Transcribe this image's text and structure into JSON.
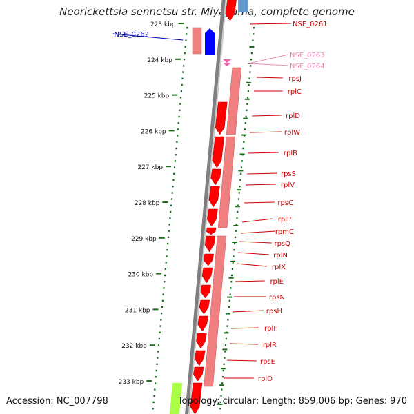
{
  "title": "Neorickettsia sennetsu str. Miyayama, complete genome",
  "footer": {
    "accession": "Accession: NC_007798",
    "topology": "Topology: circular; Length: 859,006 bp; Genes: 970"
  },
  "colors": {
    "tick": "#1a6e1a",
    "backbone": "#808080",
    "gene_fwd": "#ff0000",
    "gene_fwd_light": "#f08080",
    "gene_rev": "#0000ff",
    "gene_rev_light": "#6699cc",
    "rna": "#aaff44",
    "label_red": "#cc0000",
    "label_blue": "#0000aa",
    "label_pink": "#ee88bb"
  },
  "scale_labels": [
    "223 kbp",
    "224 kbp",
    "225 kbp",
    "226 kbp",
    "227 kbp",
    "228 kbp",
    "229 kbp",
    "230 kbp",
    "231 kbp",
    "232 kbp",
    "233 kbp"
  ],
  "genes": [
    {
      "name": "NSE_0261",
      "color": "red"
    },
    {
      "name": "NSE_0262",
      "color": "blue"
    },
    {
      "name": "NSE_0263",
      "color": "pink"
    },
    {
      "name": "NSE_0264",
      "color": "pink"
    },
    {
      "name": "rpsJ",
      "color": "red"
    },
    {
      "name": "rplC",
      "color": "red"
    },
    {
      "name": "rplD",
      "color": "red"
    },
    {
      "name": "rplW",
      "color": "red"
    },
    {
      "name": "rplB",
      "color": "red"
    },
    {
      "name": "rpsS",
      "color": "red"
    },
    {
      "name": "rplV",
      "color": "red"
    },
    {
      "name": "rpsC",
      "color": "red"
    },
    {
      "name": "rplP",
      "color": "red"
    },
    {
      "name": "rpmC",
      "color": "red"
    },
    {
      "name": "rpsQ",
      "color": "red"
    },
    {
      "name": "rplN",
      "color": "red"
    },
    {
      "name": "rplX",
      "color": "red"
    },
    {
      "name": "rplE",
      "color": "red"
    },
    {
      "name": "rpsN",
      "color": "red"
    },
    {
      "name": "rpsH",
      "color": "red"
    },
    {
      "name": "rplF",
      "color": "red"
    },
    {
      "name": "rplR",
      "color": "red"
    },
    {
      "name": "rpsE",
      "color": "red"
    },
    {
      "name": "rplO",
      "color": "red"
    }
  ]
}
